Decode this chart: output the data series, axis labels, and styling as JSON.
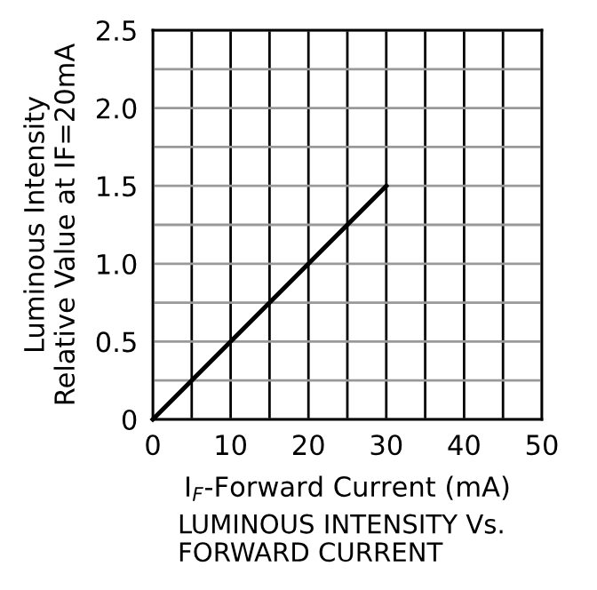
{
  "chart_data": {
    "type": "line",
    "title": "LUMINOUS INTENSITY Vs.\nFORWARD CURRENT",
    "xlabel": "I$_{F}$-Forward Current (mA)",
    "ylabel": "Luminous Intensity\nRelative Value at IF=20mA",
    "x": [
      0,
      30
    ],
    "series": [
      {
        "color": "#000000",
        "values": [
          0,
          1.5
        ]
      }
    ],
    "xlim": [
      0,
      50
    ],
    "ylim": [
      0,
      2.5
    ],
    "xticks": [
      0,
      {
        "value": 5,
        "label": null
      },
      10,
      {
        "value": 15,
        "label": null
      },
      20,
      {
        "value": 25,
        "label": null
      },
      30,
      {
        "value": 35,
        "label": null
      },
      40,
      {
        "value": 45,
        "label": null
      },
      50
    ],
    "yticks": [
      0,
      {
        "value": 0.25,
        "label": null
      },
      0.5,
      {
        "value": 0.75,
        "label": null
      },
      {
        "value": 1.0,
        "label": "1.0"
      },
      {
        "value": 1.25,
        "label": null
      },
      1.5,
      {
        "value": 1.75,
        "label": null
      },
      {
        "value": 2.0,
        "label": "2.0"
      },
      {
        "value": 2.25,
        "label": null
      },
      2.5
    ],
    "grid": true,
    "marker": "none",
    "line_style": "solid"
  }
}
